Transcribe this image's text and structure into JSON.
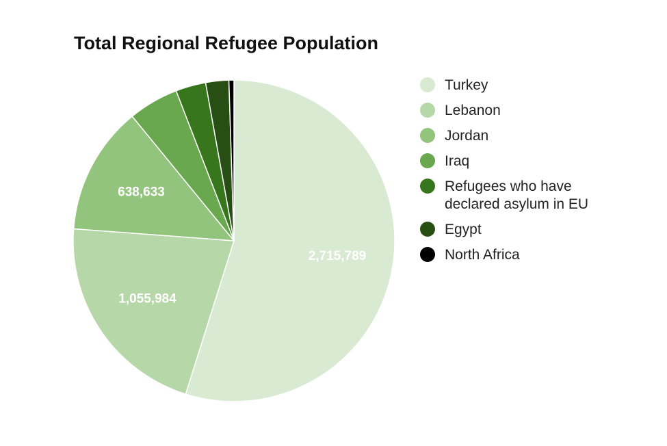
{
  "chart_data": {
    "type": "pie",
    "title": "Total Regional Refugee Population",
    "categories": [
      "Turkey",
      "Lebanon",
      "Jordan",
      "Iraq",
      "Refugees who have declared asylum in EU",
      "Egypt",
      "North Africa"
    ],
    "values": [
      2715789,
      1055984,
      638633,
      250000,
      150000,
      115000,
      25000
    ],
    "value_labels": [
      "2,715,789",
      "1,055,984",
      "638,633",
      null,
      null,
      null,
      null
    ],
    "colors": [
      "#d9ead3",
      "#b6d7a8",
      "#93c47d",
      "#6aa84f",
      "#38761d",
      "#274e13",
      "#000000"
    ],
    "legend": "right"
  }
}
